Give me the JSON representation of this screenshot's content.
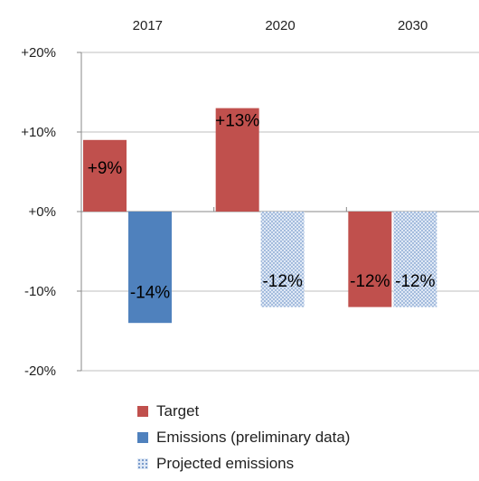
{
  "chart_data": {
    "type": "bar",
    "categories": [
      "2017",
      "2020",
      "2030"
    ],
    "ylim": [
      -20,
      20
    ],
    "y_ticks": [
      "+20%",
      "+10%",
      "+0%",
      "-10%",
      "-20%"
    ],
    "y_tick_values": [
      20,
      10,
      0,
      -10,
      -20
    ],
    "grid": true,
    "legend_position": "bottom",
    "series": [
      {
        "name": "Target",
        "color": "#c0504d",
        "fill": "solid",
        "values": [
          9,
          13,
          -12
        ],
        "labels": [
          "+9%",
          "+13%",
          "-12%"
        ]
      },
      {
        "name": "Emissions (preliminary data)",
        "color": "#4f81bd",
        "fill": "solid",
        "values": [
          -14,
          null,
          null
        ],
        "labels": [
          "-14%",
          "",
          ""
        ]
      },
      {
        "name": "Projected emissions",
        "color": "#8fb0d8",
        "fill": "dotted-pattern",
        "values": [
          null,
          -12,
          -12
        ],
        "labels": [
          "",
          "-12%",
          "-12%"
        ]
      }
    ]
  }
}
